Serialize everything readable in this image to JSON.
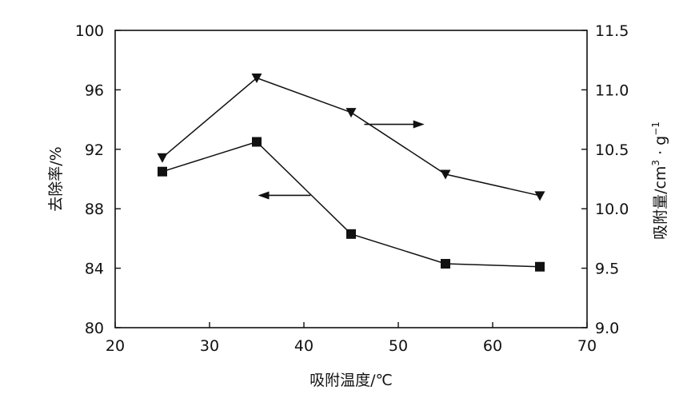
{
  "chart_data": {
    "type": "line",
    "title": "",
    "xlabel": "吸附温度/℃",
    "ylabel_left": "去除率/%",
    "ylabel_right_main": "吸附量/cm",
    "ylabel_right_mid": " · g",
    "ylabel_right_sup3": "3",
    "ylabel_right_supneg1": "−1",
    "xlim": [
      20,
      70
    ],
    "ylim_left": [
      80,
      100
    ],
    "ylim_right": [
      9.0,
      11.5
    ],
    "x_ticks": [
      "20",
      "30",
      "40",
      "50",
      "60",
      "70"
    ],
    "y_left_ticks": [
      "80",
      "84",
      "88",
      "92",
      "96",
      "100"
    ],
    "y_right_ticks": [
      "9.0",
      "9.5",
      "10.0",
      "10.5",
      "11.0",
      "11.5"
    ],
    "grid": false,
    "series": [
      {
        "axis": "left",
        "marker": "square",
        "x": [
          25,
          35,
          45,
          55,
          65
        ],
        "y": [
          90.5,
          92.5,
          86.3,
          84.3,
          84.1
        ]
      },
      {
        "axis": "right",
        "marker": "triangle-down",
        "x": [
          25,
          35,
          45,
          55,
          65
        ],
        "y": [
          10.43,
          11.1,
          10.81,
          10.29,
          10.11
        ]
      }
    ],
    "annotations": [
      {
        "type": "arrow",
        "direction": "left",
        "points_to": "left-axis",
        "from": [
          40.7,
          88.9
        ],
        "to": [
          35.3,
          88.9
        ]
      },
      {
        "type": "arrow",
        "direction": "right",
        "points_to": "right-axis",
        "from": [
          46.4,
          10.71
        ],
        "to": [
          52.6,
          10.71
        ]
      }
    ],
    "colors": {
      "line": "#111111",
      "marker": "#111111",
      "axis": "#111111"
    }
  }
}
